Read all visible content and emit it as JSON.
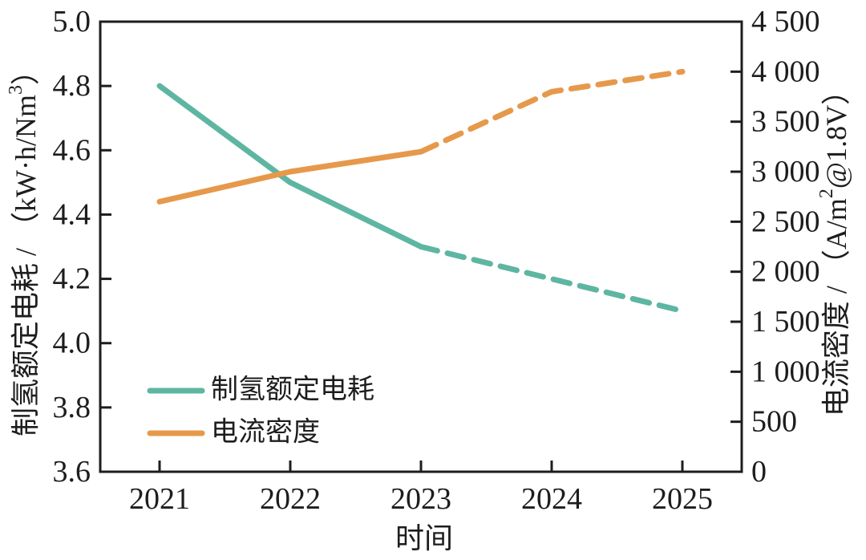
{
  "figure": {
    "background": "#ffffff",
    "axis_color": "#1d1d1d",
    "text_color": "#1d1d1d"
  },
  "chart_data": {
    "type": "line",
    "x": [
      2021,
      2022,
      2023,
      2024,
      2025
    ],
    "x_tick_labels": [
      "2021",
      "2022",
      "2023",
      "2024",
      "2025"
    ],
    "xlabel": "时间",
    "grid": false,
    "series": [
      {
        "name": "制氢额定电耗",
        "axis": "left",
        "color": "#5eb6a2",
        "values": [
          4.8,
          4.5,
          4.3,
          4.2,
          4.1
        ],
        "solid_through_x": 2023,
        "line_style": "solid then dashed projection after 2023"
      },
      {
        "name": "电流密度",
        "axis": "right",
        "color": "#e6994b",
        "values": [
          2700,
          3000,
          3200,
          3800,
          4000
        ],
        "solid_through_x": 2023,
        "line_style": "solid then dashed projection after 2023"
      }
    ],
    "left_axis": {
      "label": "制氢额定电耗 / （kW·h/Nm³）",
      "min": 3.6,
      "max": 5.0,
      "ticks": [
        5.0,
        4.8,
        4.6,
        4.4,
        4.2,
        4.0,
        3.8,
        3.6
      ],
      "tick_labels": [
        "5.0",
        "4.8",
        "4.6",
        "4.4",
        "4.2",
        "4.0",
        "3.8",
        "3.6"
      ]
    },
    "right_axis": {
      "label": "电流密度 / （A/m²@1.8V）",
      "min": 0,
      "max": 4500,
      "ticks": [
        4500,
        4000,
        3500,
        3000,
        2500,
        2000,
        1500,
        1000,
        500,
        0
      ],
      "tick_labels": [
        "4 500",
        "4 000",
        "3 500",
        "3 000",
        "2 500",
        "2 000",
        "1 500",
        "1 000",
        "500",
        "0"
      ]
    },
    "legend": {
      "position": "lower-left",
      "entries": [
        "制氢额定电耗",
        "电流密度"
      ]
    }
  }
}
